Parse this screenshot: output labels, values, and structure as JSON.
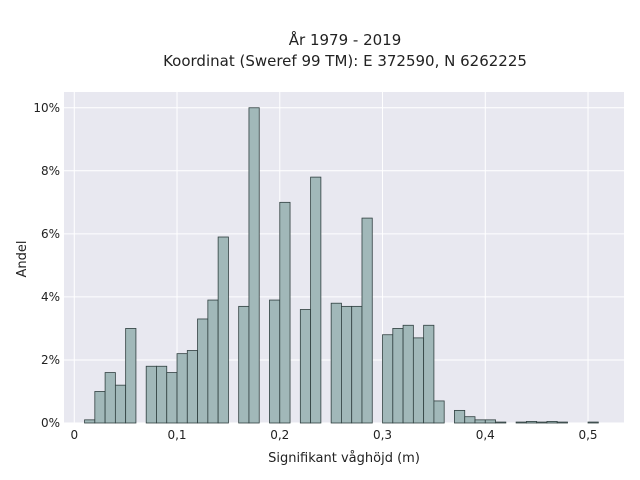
{
  "chart_data": {
    "type": "bar",
    "title_lines": [
      "År 1979 - 2019",
      "Koordinat (Sweref 99 TM): E 372590, N 6262225"
    ],
    "xlabel": "Signifikant våghöjd (m)",
    "ylabel": "Andel",
    "xlim": [
      -0.01,
      0.535
    ],
    "ylim": [
      0,
      10.5
    ],
    "x_ticks": [
      0,
      0.1,
      0.2,
      0.3,
      0.4,
      0.5
    ],
    "x_tick_labels": [
      "0",
      "0,1",
      "0,2",
      "0,3",
      "0,4",
      "0,5"
    ],
    "y_ticks": [
      0,
      2,
      4,
      6,
      8,
      10
    ],
    "y_tick_labels": [
      "0%",
      "2%",
      "4%",
      "6%",
      "8%",
      "10%"
    ],
    "bin_width": 0.01,
    "bin_starts": [
      0.01,
      0.02,
      0.03,
      0.04,
      0.05,
      0.07,
      0.08,
      0.09,
      0.1,
      0.11,
      0.12,
      0.13,
      0.14,
      0.16,
      0.17,
      0.19,
      0.2,
      0.22,
      0.23,
      0.25,
      0.26,
      0.27,
      0.28,
      0.3,
      0.31,
      0.32,
      0.33,
      0.34,
      0.35,
      0.37,
      0.38,
      0.39,
      0.4,
      0.41,
      0.43,
      0.44,
      0.45,
      0.46,
      0.47,
      0.5
    ],
    "values": [
      0.1,
      1.0,
      1.6,
      1.2,
      3.0,
      1.8,
      1.8,
      1.6,
      2.2,
      2.3,
      3.3,
      3.9,
      5.9,
      3.7,
      10.0,
      3.9,
      7.0,
      3.6,
      7.8,
      3.8,
      3.7,
      3.7,
      6.5,
      2.8,
      3.0,
      3.1,
      2.7,
      3.1,
      0.7,
      0.4,
      0.2,
      0.1,
      0.1,
      0.03,
      0.03,
      0.05,
      0.03,
      0.05,
      0.03,
      0.03
    ],
    "bar_color": "#a1b8b9",
    "bar_edge_color": "#2f3f3f",
    "plot_background": "#e8e8f0",
    "grid_color": "#ffffff",
    "grid": true
  }
}
